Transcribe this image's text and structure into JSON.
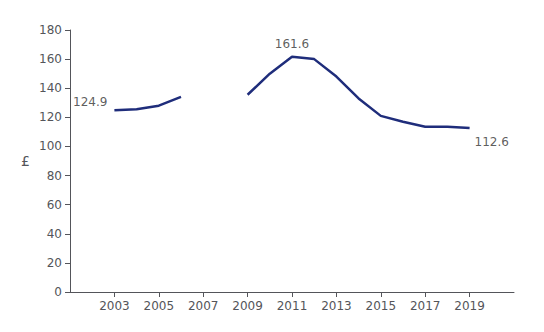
{
  "chart_data": {
    "type": "line",
    "x": [
      2003,
      2004,
      2005,
      2006,
      2007,
      2008,
      2009,
      2010,
      2011,
      2012,
      2013,
      2014,
      2015,
      2016,
      2017,
      2018,
      2019
    ],
    "values": [
      124.9,
      125.5,
      128.0,
      134.0,
      null,
      null,
      135.5,
      150.0,
      161.6,
      160.0,
      148.0,
      133.0,
      121.0,
      117.0,
      113.5,
      113.5,
      112.6
    ],
    "color": "#1f2d7b",
    "ylabel": "£",
    "xlim": [
      2001,
      2021
    ],
    "xticks": [
      2003,
      2005,
      2007,
      2009,
      2011,
      2013,
      2015,
      2017,
      2019
    ],
    "ylim": [
      0,
      180
    ],
    "yticks": [
      0,
      20,
      40,
      60,
      80,
      100,
      120,
      140,
      160,
      180
    ],
    "grid": false,
    "annotations": [
      {
        "x": 2003,
        "y": 124.9,
        "label": "124.9"
      },
      {
        "x": 2011,
        "y": 161.6,
        "label": "161.6"
      },
      {
        "x": 2019,
        "y": 112.6,
        "label": "112.6"
      }
    ]
  }
}
